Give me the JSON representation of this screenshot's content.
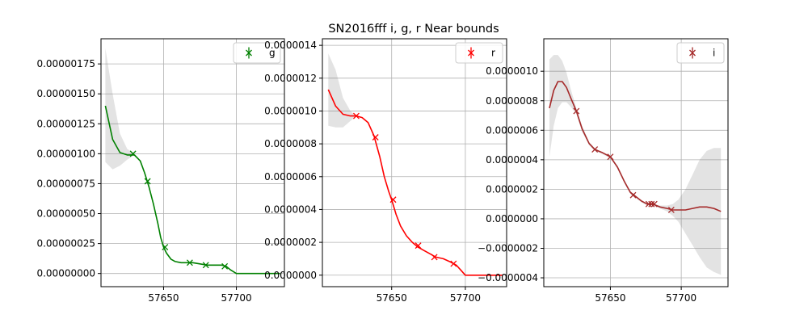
{
  "title": "SN2016fff  i, g, r Near bounds",
  "chart_data": [
    {
      "type": "line",
      "legend": "g",
      "legend_position": "top-right",
      "grid": true,
      "color": "#008000",
      "xlim": [
        57607,
        57733
      ],
      "ylim": [
        -1.1e-07,
        1.96e-06
      ],
      "xticks": [
        57650,
        57700
      ],
      "xtick_labels": [
        "57650",
        "57700"
      ],
      "yticks": [
        0,
        2.5e-07,
        5e-07,
        7.5e-07,
        1e-06,
        1.25e-06,
        1.5e-06,
        1.75e-06
      ],
      "ytick_labels": [
        "0.00000000",
        "0.00000025",
        "0.00000050",
        "0.00000075",
        "0.00000100",
        "0.00000125",
        "0.00000150",
        "0.00000175"
      ],
      "curve_x": [
        57610,
        57615,
        57620,
        57625,
        57630,
        57634,
        57637,
        57640,
        57643,
        57646,
        57648,
        57650,
        57652,
        57655,
        57658,
        57662,
        57666,
        57670,
        57675,
        57680,
        57685,
        57690,
        57693,
        57696,
        57700,
        57705,
        57710,
        57715,
        57720,
        57725,
        57730
      ],
      "curve_y": [
        1.4e-06,
        1.12e-06,
        1.01e-06,
        9.9e-07,
        9.9e-07,
        9.4e-07,
        8.4e-07,
        7.2e-07,
        5.8e-07,
        4.2e-07,
        3e-07,
        2.2e-07,
        1.7e-07,
        1.2e-07,
        1e-07,
        9e-08,
        9e-08,
        9e-08,
        8e-08,
        7e-08,
        7e-08,
        7e-08,
        6e-08,
        3e-08,
        0.0,
        0.0,
        0.0,
        0.0,
        0.0,
        0.0,
        0.0
      ],
      "band_upper": [
        1.88e-06,
        1.5e-06,
        1.17e-06,
        1.04e-06,
        1e-06,
        9.4e-07,
        8.4e-07,
        7.2e-07,
        5.8e-07,
        4.2e-07,
        3e-07,
        2.2e-07,
        1.7e-07,
        1.2e-07,
        1e-07,
        9e-08,
        9e-08,
        9e-08,
        8e-08,
        7e-08,
        7e-08,
        7e-08,
        6e-08,
        3e-08,
        0.0,
        0.0,
        0.0,
        0.0,
        0.0,
        0.0,
        0.0
      ],
      "band_lower": [
        9.3e-07,
        8.7e-07,
        9e-07,
        9.5e-07,
        9.9e-07,
        9.4e-07,
        8.4e-07,
        7.2e-07,
        5.8e-07,
        4.2e-07,
        3e-07,
        2.2e-07,
        1.7e-07,
        1.2e-07,
        1e-07,
        9e-08,
        9e-08,
        9e-08,
        8e-08,
        7e-08,
        7e-08,
        7e-08,
        6e-08,
        3e-08,
        0.0,
        0.0,
        0.0,
        0.0,
        0.0,
        0.0,
        0.0
      ],
      "points_x": [
        57629,
        57639,
        57651,
        57668,
        57679,
        57692
      ],
      "points_y": [
        1e-06,
        7.7e-07,
        2.2e-07,
        9e-08,
        7e-08,
        6e-08
      ]
    },
    {
      "type": "line",
      "legend": "r",
      "legend_position": "top-right",
      "grid": true,
      "color": "#ff0000",
      "xlim": [
        57603,
        57728
      ],
      "ylim": [
        -7e-08,
        1.44e-06
      ],
      "xticks": [
        57650,
        57700
      ],
      "xtick_labels": [
        "57650",
        "57700"
      ],
      "yticks": [
        0,
        2e-07,
        4e-07,
        6e-07,
        8e-07,
        1e-06,
        1.2e-06,
        1.4e-06
      ],
      "ytick_labels": [
        "0.0000000",
        "0.0000002",
        "0.0000004",
        "0.0000006",
        "0.0000008",
        "0.0000010",
        "0.0000012",
        "0.0000014"
      ],
      "curve_x": [
        57607,
        57612,
        57617,
        57622,
        57626,
        57630,
        57634,
        57638,
        57642,
        57645,
        57648,
        57650,
        57653,
        57656,
        57660,
        57664,
        57668,
        57672,
        57676,
        57680,
        57685,
        57690,
        57694,
        57697,
        57700,
        57705,
        57710,
        57715,
        57720,
        57725
      ],
      "curve_y": [
        1.13e-06,
        1.03e-06,
        9.8e-07,
        9.7e-07,
        9.7e-07,
        9.6e-07,
        9.3e-07,
        8.5e-07,
        7.2e-07,
        6e-07,
        5.1e-07,
        4.6e-07,
        3.7e-07,
        3e-07,
        2.4e-07,
        2e-07,
        1.7e-07,
        1.5e-07,
        1.3e-07,
        1.1e-07,
        1e-07,
        8e-08,
        6e-08,
        3e-08,
        0.0,
        0.0,
        0.0,
        0.0,
        0.0,
        0.0
      ],
      "band_upper": [
        1.35e-06,
        1.25e-06,
        1.08e-06,
        1e-06,
        9.7e-07,
        9.6e-07,
        9.3e-07,
        8.5e-07,
        7.2e-07,
        6e-07,
        5.1e-07,
        4.6e-07,
        3.7e-07,
        3e-07,
        2.4e-07,
        2e-07,
        1.7e-07,
        1.5e-07,
        1.3e-07,
        1.1e-07,
        1e-07,
        8e-08,
        6e-08,
        3e-08,
        0.0,
        0.0,
        0.0,
        0.0,
        0.0,
        0.0
      ],
      "band_lower": [
        9.1e-07,
        9e-07,
        9e-07,
        9.4e-07,
        9.7e-07,
        9.6e-07,
        9.3e-07,
        8.5e-07,
        7.2e-07,
        6e-07,
        5.1e-07,
        4.6e-07,
        3.7e-07,
        3e-07,
        2.4e-07,
        2e-07,
        1.7e-07,
        1.5e-07,
        1.3e-07,
        1.1e-07,
        1e-07,
        8e-08,
        6e-08,
        3e-08,
        0.0,
        0.0,
        0.0,
        0.0,
        0.0,
        0.0
      ],
      "points_x": [
        57626,
        57639,
        57651,
        57668,
        57679,
        57692
      ],
      "points_y": [
        9.7e-07,
        8.4e-07,
        4.6e-07,
        1.8e-07,
        1.1e-07,
        7e-08
      ]
    },
    {
      "type": "line",
      "legend": "i",
      "legend_position": "top-right",
      "grid": true,
      "color": "#a52a2a",
      "xlim": [
        57603,
        57733
      ],
      "ylim": [
        -4.6e-07,
        1.22e-06
      ],
      "xticks": [
        57650,
        57700
      ],
      "xtick_labels": [
        "57650",
        "57700"
      ],
      "yticks": [
        -4e-07,
        -2e-07,
        0,
        2e-07,
        4e-07,
        6e-07,
        8e-07,
        1e-06
      ],
      "ytick_labels": [
        "−0.0000004",
        "−0.0000002",
        "0.0000000",
        "0.0000002",
        "0.0000004",
        "0.0000006",
        "0.0000008",
        "0.0000010"
      ],
      "curve_x": [
        57607,
        57610,
        57613,
        57616,
        57619,
        57622,
        57626,
        57630,
        57635,
        57639,
        57644,
        57650,
        57655,
        57660,
        57664,
        57668,
        57672,
        57676,
        57680,
        57685,
        57690,
        57694,
        57698,
        57703,
        57708,
        57713,
        57718,
        57723,
        57728
      ],
      "curve_y": [
        7.5e-07,
        8.7e-07,
        9.3e-07,
        9.3e-07,
        8.9e-07,
        8.2e-07,
        7.3e-07,
        6.1e-07,
        5.1e-07,
        4.7e-07,
        4.5e-07,
        4.2e-07,
        3.5e-07,
        2.5e-07,
        1.8e-07,
        1.5e-07,
        1.2e-07,
        1e-07,
        1e-07,
        8e-08,
        7e-08,
        6e-08,
        6e-08,
        6e-08,
        7e-08,
        8e-08,
        8e-08,
        7e-08,
        5e-08
      ],
      "band_upper": [
        1.08e-06,
        1.11e-06,
        1.11e-06,
        1.07e-06,
        9.9e-07,
        8.8e-07,
        7.5e-07,
        6.3e-07,
        5.2e-07,
        4.8e-07,
        4.5e-07,
        4.3e-07,
        3.6e-07,
        2.6e-07,
        1.9e-07,
        1.5e-07,
        1.2e-07,
        1e-07,
        1e-07,
        9e-08,
        9e-08,
        1e-07,
        1.3e-07,
        2e-07,
        3e-07,
        4e-07,
        4.6e-07,
        4.8e-07,
        4.8e-07
      ],
      "band_lower": [
        4.2e-07,
        6.3e-07,
        7.5e-07,
        7.9e-07,
        7.9e-07,
        7.6e-07,
        7.1e-07,
        5.9e-07,
        5e-07,
        4.6e-07,
        4.4e-07,
        4.1e-07,
        3.4e-07,
        2.4e-07,
        1.7e-07,
        1.4e-07,
        1.1e-07,
        9e-08,
        9e-08,
        7e-08,
        5e-08,
        2e-08,
        -2e-08,
        -1e-07,
        -1.8e-07,
        -2.6e-07,
        -3.3e-07,
        -3.6e-07,
        -3.8e-07
      ],
      "points_x": [
        57626,
        57639,
        57650,
        57666,
        57677,
        57679,
        57681,
        57693
      ],
      "points_y": [
        7.3e-07,
        4.7e-07,
        4.2e-07,
        1.6e-07,
        1e-07,
        1e-07,
        1e-07,
        6e-08
      ]
    }
  ]
}
